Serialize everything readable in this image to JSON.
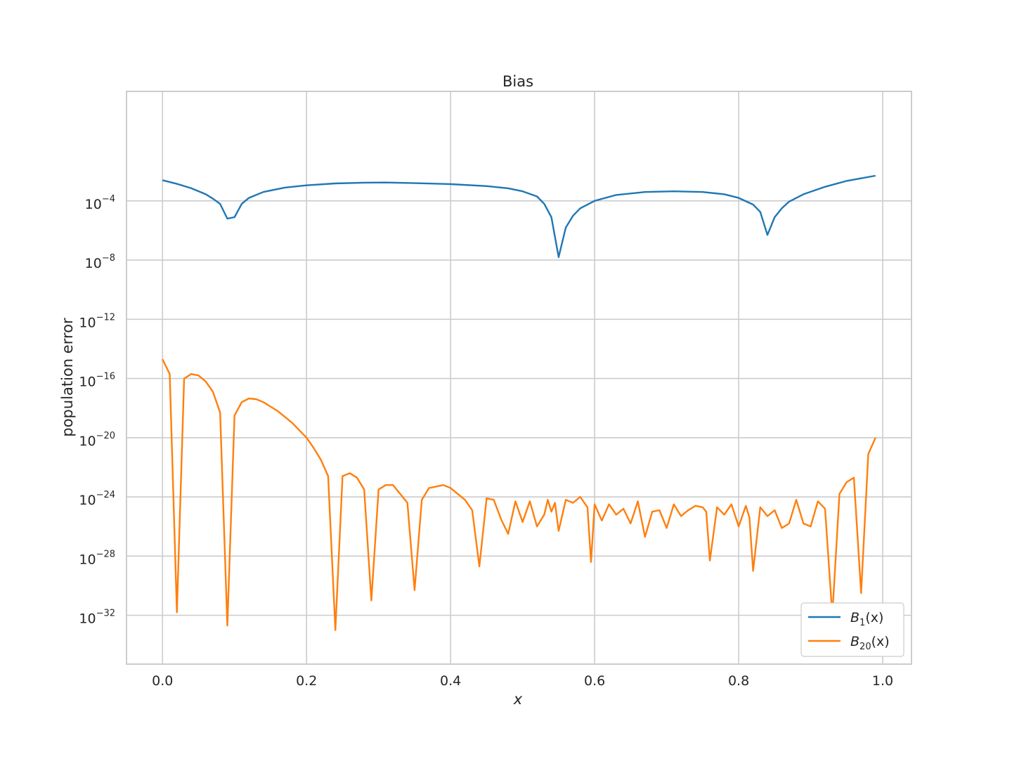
{
  "chart_data": {
    "type": "line",
    "title": "Bias",
    "xlabel": "x",
    "ylabel": "population error",
    "yscale": "log",
    "xlim": [
      -0.05,
      1.04
    ],
    "ylim_exponent": [
      -35.3,
      3.4
    ],
    "grid": true,
    "legend_position": "lower-right",
    "x_ticks": [
      "0.0",
      "0.2",
      "0.4",
      "0.6",
      "0.8",
      "1.0"
    ],
    "x_tick_values": [
      0,
      0.2,
      0.4,
      0.6,
      0.8,
      1.0
    ],
    "y_ticks": [
      {
        "base": "10",
        "exp": "−4",
        "value_exp": -4
      },
      {
        "base": "10",
        "exp": "−8",
        "value_exp": -8
      },
      {
        "base": "10",
        "exp": "−12",
        "value_exp": -12
      },
      {
        "base": "10",
        "exp": "−16",
        "value_exp": -16
      },
      {
        "base": "10",
        "exp": "−20",
        "value_exp": -20
      },
      {
        "base": "10",
        "exp": "−24",
        "value_exp": -24
      },
      {
        "base": "10",
        "exp": "−28",
        "value_exp": -28
      },
      {
        "base": "10",
        "exp": "−32",
        "value_exp": -32
      }
    ],
    "series": [
      {
        "name": "B1(x)",
        "label_main": "B",
        "label_sub": "1",
        "label_tail": "(x)",
        "color": "#1f77b4",
        "x": [
          0.0,
          0.02,
          0.04,
          0.06,
          0.07,
          0.08,
          0.09,
          0.1,
          0.11,
          0.12,
          0.14,
          0.17,
          0.2,
          0.24,
          0.28,
          0.31,
          0.35,
          0.4,
          0.45,
          0.48,
          0.5,
          0.52,
          0.53,
          0.54,
          0.55,
          0.56,
          0.57,
          0.58,
          0.6,
          0.63,
          0.67,
          0.71,
          0.75,
          0.78,
          0.8,
          0.82,
          0.83,
          0.84,
          0.85,
          0.86,
          0.87,
          0.89,
          0.92,
          0.95,
          0.99
        ],
        "log10_y": [
          -2.6,
          -2.85,
          -3.15,
          -3.55,
          -3.85,
          -4.2,
          -5.2,
          -5.1,
          -4.2,
          -3.8,
          -3.4,
          -3.1,
          -2.95,
          -2.82,
          -2.77,
          -2.76,
          -2.8,
          -2.87,
          -3.0,
          -3.15,
          -3.35,
          -3.7,
          -4.2,
          -5.1,
          -7.8,
          -5.8,
          -5.0,
          -4.5,
          -4.0,
          -3.6,
          -3.4,
          -3.35,
          -3.4,
          -3.55,
          -3.8,
          -4.25,
          -4.75,
          -6.3,
          -5.1,
          -4.5,
          -4.05,
          -3.55,
          -3.05,
          -2.65,
          -2.3
        ]
      },
      {
        "name": "B20(x)",
        "label_main": "B",
        "label_sub": "20",
        "label_tail": "(x)",
        "color": "#ff7f0e",
        "x": [
          0.0,
          0.01,
          0.02,
          0.03,
          0.04,
          0.05,
          0.06,
          0.07,
          0.08,
          0.09,
          0.1,
          0.11,
          0.12,
          0.13,
          0.14,
          0.16,
          0.18,
          0.2,
          0.21,
          0.22,
          0.23,
          0.24,
          0.25,
          0.26,
          0.27,
          0.28,
          0.29,
          0.3,
          0.31,
          0.32,
          0.33,
          0.34,
          0.35,
          0.36,
          0.37,
          0.38,
          0.39,
          0.4,
          0.41,
          0.42,
          0.43,
          0.44,
          0.45,
          0.46,
          0.47,
          0.48,
          0.49,
          0.5,
          0.51,
          0.52,
          0.53,
          0.535,
          0.54,
          0.545,
          0.55,
          0.56,
          0.57,
          0.58,
          0.59,
          0.595,
          0.6,
          0.61,
          0.62,
          0.63,
          0.64,
          0.65,
          0.66,
          0.67,
          0.68,
          0.69,
          0.7,
          0.71,
          0.72,
          0.73,
          0.74,
          0.75,
          0.755,
          0.76,
          0.77,
          0.78,
          0.79,
          0.8,
          0.81,
          0.815,
          0.82,
          0.83,
          0.84,
          0.85,
          0.86,
          0.87,
          0.88,
          0.89,
          0.9,
          0.91,
          0.92,
          0.93,
          0.94,
          0.95,
          0.96,
          0.97,
          0.98,
          0.99
        ],
        "log10_y": [
          -14.7,
          -15.7,
          -31.8,
          -16.0,
          -15.7,
          -15.8,
          -16.2,
          -16.9,
          -18.3,
          -32.7,
          -18.5,
          -17.6,
          -17.35,
          -17.4,
          -17.6,
          -18.2,
          -19.0,
          -20.0,
          -20.7,
          -21.5,
          -22.6,
          -33.0,
          -22.6,
          -22.4,
          -22.7,
          -23.5,
          -31.0,
          -23.5,
          -23.2,
          -23.2,
          -23.8,
          -24.4,
          -30.3,
          -24.2,
          -23.4,
          -23.3,
          -23.2,
          -23.4,
          -23.8,
          -24.2,
          -24.9,
          -28.7,
          -24.1,
          -24.2,
          -25.5,
          -26.5,
          -24.3,
          -25.7,
          -24.3,
          -26.0,
          -25.2,
          -24.2,
          -25.0,
          -24.4,
          -26.3,
          -24.2,
          -24.4,
          -24.0,
          -24.7,
          -28.4,
          -24.5,
          -25.6,
          -24.5,
          -25.2,
          -24.8,
          -25.8,
          -24.3,
          -26.7,
          -25.0,
          -24.9,
          -26.1,
          -24.5,
          -25.3,
          -24.9,
          -24.6,
          -24.7,
          -25.0,
          -28.3,
          -24.7,
          -25.2,
          -24.5,
          -26.0,
          -24.6,
          -25.4,
          -29.0,
          -24.7,
          -25.3,
          -24.9,
          -26.1,
          -25.8,
          -24.2,
          -25.8,
          -26.0,
          -24.3,
          -24.8,
          -32.0,
          -23.8,
          -23.0,
          -22.7,
          -30.5,
          -21.1,
          -20.0
        ]
      }
    ]
  }
}
